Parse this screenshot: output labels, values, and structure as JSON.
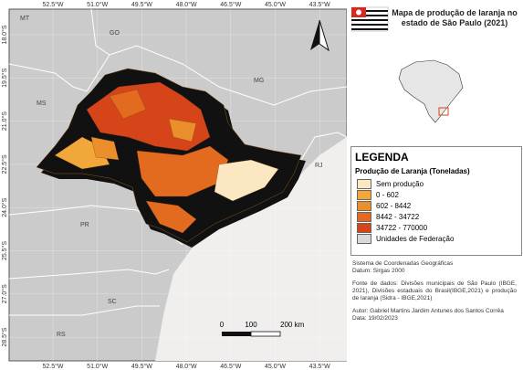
{
  "map": {
    "grid_labels_top": [
      "52.5°W",
      "51.0°W",
      "49.5°W",
      "48.0°W",
      "46.5°W",
      "45.0°W",
      "43.5°W"
    ],
    "grid_labels_bottom": [
      "52.5°W",
      "51.0°W",
      "49.5°W",
      "48.0°W",
      "46.5°W",
      "45.0°W",
      "43.5°W"
    ],
    "grid_labels_left": [
      "18.0°S",
      "19.5°S",
      "21.0°S",
      "22.5°S",
      "24.0°S",
      "25.5°S",
      "27.0°S",
      "28.5°S"
    ],
    "state_labels": [
      "MT",
      "GO",
      "MG",
      "MS",
      "RJ",
      "PR",
      "SC",
      "RS"
    ],
    "scale_bar": [
      "0",
      "100",
      "200 km"
    ]
  },
  "title": "Mapa de produção de laranja no estado de São Paulo (2021)",
  "legend": {
    "heading": "LEGENDA",
    "subheading": "Produção de Laranja (Toneladas)",
    "items": [
      {
        "label": "Sem produção",
        "color": "#fbe7c1"
      },
      {
        "label": "0 - 602",
        "color": "#f2a73a"
      },
      {
        "label": "602 - 8442",
        "color": "#eb8f2d"
      },
      {
        "label": "8442 - 34722",
        "color": "#e36b1f"
      },
      {
        "label": "34722 - 770000",
        "color": "#d6451a"
      },
      {
        "label": "Unidades de Federação",
        "color": "#d9d9d9"
      }
    ]
  },
  "credits": [
    "Sistema de Coordenadas Geográficas",
    "Datum: Sirgas 2000",
    "Fonte de dados: Divisões municipais de São Paulo (IBGE, 2021), Divisões estaduais do Brasil(IBGE,2021) e produção de laranja (Sidra - IBGE,2021)",
    "Autor: Gabriel Martins Jardim Antunes dos Santos Corrêa",
    "Data: 19/02/2023"
  ]
}
